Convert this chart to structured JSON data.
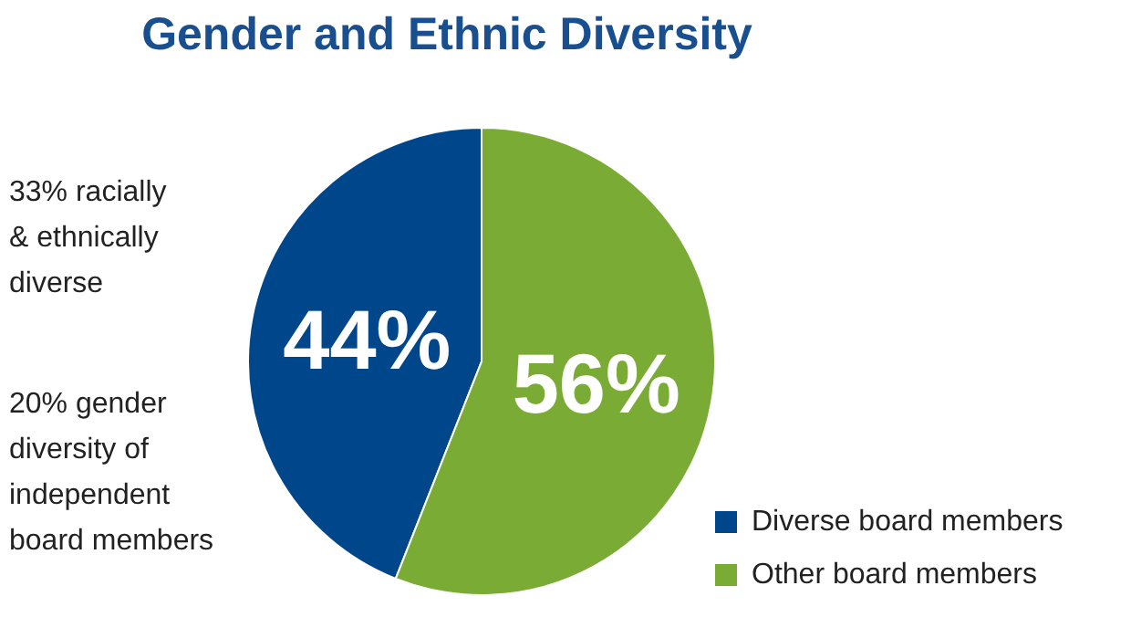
{
  "chart_data": {
    "type": "pie",
    "title": "Gender and Ethnic Diversity",
    "categories": [
      "Diverse board members",
      "Other board members"
    ],
    "values": [
      44,
      56
    ],
    "colors": [
      "#00468b",
      "#7aab35"
    ],
    "value_labels": [
      "44%",
      "56%"
    ],
    "legend": "bottom right",
    "annotations": [
      "33% racially & ethnically diverse",
      "20% gender diversity of independent board members"
    ]
  }
}
